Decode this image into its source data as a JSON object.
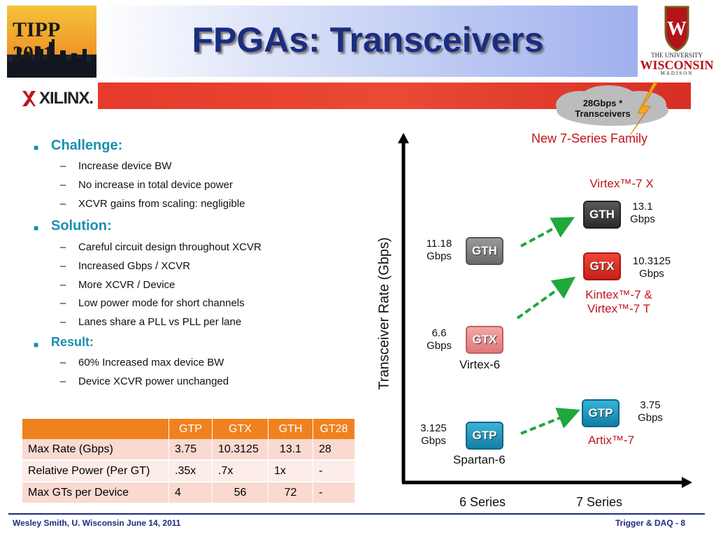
{
  "header": {
    "title": "FPGAs: Transceivers",
    "tipp_logo_text": "TIPP 2011",
    "uw_line1": "THE UNIVERSITY",
    "uw_line2": "WISCONSIN",
    "uw_line3": "MADISON",
    "xilinx_logo_text": "XILINX."
  },
  "bullets": {
    "challenge": {
      "heading": "Challenge:",
      "items": [
        "Increase device BW",
        "No increase in total device power",
        "XCVR gains from scaling: negligible"
      ]
    },
    "solution": {
      "heading": "Solution:",
      "items": [
        "Careful circuit design throughout XCVR",
        "Increased Gbps / XCVR",
        "More XCVR / Device",
        "Low power mode for short channels",
        "Lanes share a PLL vs PLL per lane"
      ]
    },
    "result": {
      "heading": "Result:",
      "items": [
        "60% Increased max device BW",
        "Device XCVR power unchanged"
      ]
    }
  },
  "table": {
    "headers": [
      "",
      "GTP",
      "GTX",
      "GTH",
      "GT28"
    ],
    "rows": [
      [
        "Max Rate (Gbps)",
        "3.75",
        "10.3125",
        "13.1",
        "28"
      ],
      [
        "Relative Power (Per GT)",
        ".35x",
        ".7x",
        "1x",
        "-"
      ],
      [
        "Max GTs per Device",
        "4",
        "56",
        "72",
        "-"
      ]
    ]
  },
  "diagram": {
    "y_axis_label": "Transceiver Rate (Gbps)",
    "x_labels": [
      "6 Series",
      "7 Series"
    ],
    "cloud_text_1": "28Gbps *",
    "cloud_text_2": "Transceivers",
    "new_family": "New 7-Series Family",
    "chips6": [
      {
        "label": "GTH",
        "rate1": "11.18",
        "rate2": "Gbps"
      },
      {
        "label": "GTX",
        "rate1": "6.6",
        "rate2": "Gbps"
      },
      {
        "label": "GTP",
        "rate1": "3.125",
        "rate2": "Gbps"
      }
    ],
    "chips7": [
      {
        "label": "GTH",
        "rate1": "13.1",
        "rate2": "Gbps"
      },
      {
        "label": "GTX",
        "rate1": "10.3125",
        "rate2": "Gbps"
      },
      {
        "label": "GTP",
        "rate1": "3.75",
        "rate2": "Gbps"
      }
    ],
    "fam_virtex7x": "Virtex™-7 X",
    "fam_kintex1": "Kintex™-7 &",
    "fam_kintex2": "Virtex™-7 T",
    "fam_artix": "Artix™-7",
    "fam_virtex6": "Virtex-6",
    "fam_spartan6": "Spartan-6"
  },
  "footer": {
    "left": "Wesley Smith, U. Wisconsin June 14, 2011",
    "right": "Trigger & DAQ -  8"
  },
  "colors": {
    "title": "#1a2d80",
    "bullet_heading": "#1a8fb0",
    "table_header": "#f0821e",
    "accent_red": "#c0141b",
    "arrow_green": "#1fa83c"
  }
}
